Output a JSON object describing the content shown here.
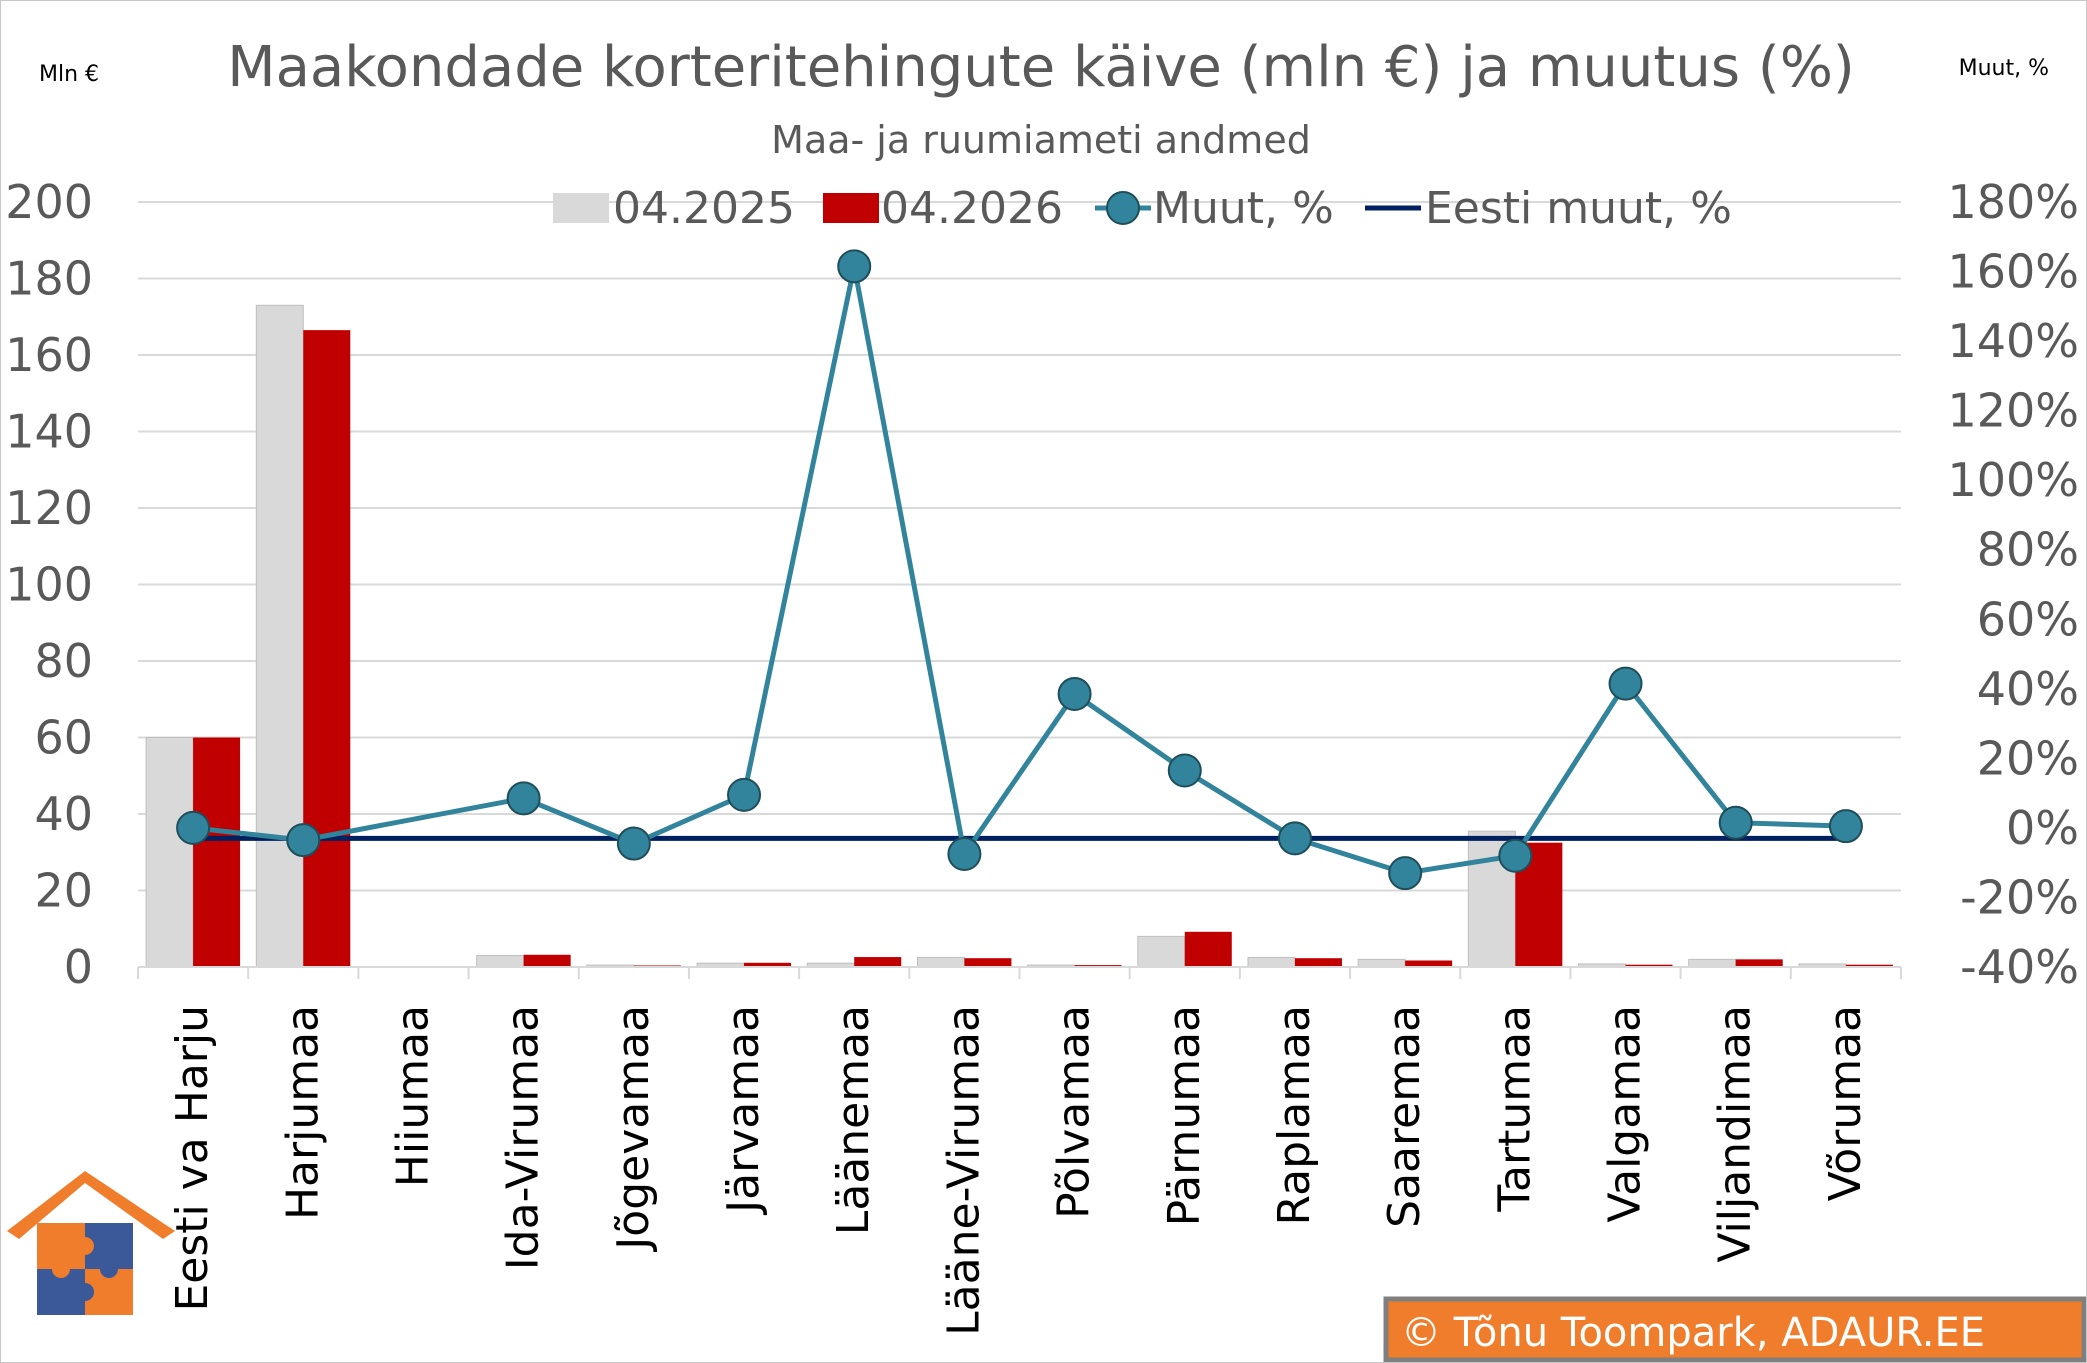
{
  "chart_data": {
    "type": "bar",
    "title": "Maakondade korteritehingute käive (mln €) ja muutus (%)",
    "subtitle": "Maa- ja ruumiameti andmed",
    "left_axis_label": "Mln €",
    "right_axis_label": "Muut, %",
    "categories": [
      "Eesti va Harju",
      "Harjumaa",
      "Hiiumaa",
      "Ida-Virumaa",
      "Jõgevamaa",
      "Järvamaa",
      "Läänemaa",
      "Lääne-Virumaa",
      "Põlvamaa",
      "Pärnumaa",
      "Raplamaa",
      "Saaremaa",
      "Tartumaa",
      "Valgamaa",
      "Viljandimaa",
      "Võrumaa"
    ],
    "series": [
      {
        "name": "04.2025",
        "kind": "bar",
        "axis": "left",
        "color": "#d9d9d9",
        "values": [
          60,
          173,
          0,
          3,
          0.5,
          1,
          1,
          2.5,
          0.5,
          8,
          2.5,
          2,
          35.5,
          0.8,
          2,
          0.8
        ]
      },
      {
        "name": "04.2026",
        "kind": "bar",
        "axis": "left",
        "color": "#c00000",
        "values": [
          60,
          166.5,
          0,
          3.2,
          0.4,
          1.1,
          2.6,
          2.3,
          0.5,
          9.2,
          2.3,
          1.7,
          32.5,
          0.6,
          2,
          0.6
        ]
      },
      {
        "name": "Muut, %",
        "kind": "line-marker",
        "axis": "right",
        "color": "#31849b",
        "values": [
          0,
          -3.5,
          null,
          8.5,
          -4.5,
          9.5,
          161.5,
          -7.5,
          38.5,
          16.5,
          -3,
          -13,
          -8,
          41.5,
          1.5,
          0.5
        ]
      },
      {
        "name": "Eesti muut, %",
        "kind": "line",
        "axis": "right",
        "color": "#002060",
        "values": [
          -3,
          -3,
          -3,
          -3,
          -3,
          -3,
          -3,
          -3,
          -3,
          -3,
          -3,
          -3,
          -3,
          -3,
          -3,
          -3
        ]
      }
    ],
    "left_axis": {
      "min": 0,
      "max": 200,
      "step": 20,
      "ticks": [
        "0",
        "20",
        "40",
        "60",
        "80",
        "100",
        "120",
        "140",
        "160",
        "180",
        "200"
      ]
    },
    "right_axis": {
      "min": -40,
      "max": 180,
      "step": 20,
      "ticks": [
        "-40%",
        "-20%",
        "0%",
        "20%",
        "40%",
        "60%",
        "80%",
        "100%",
        "120%",
        "140%",
        "160%",
        "180%"
      ]
    },
    "grid": true,
    "legend_position": "top"
  },
  "credit": "© Tõnu Toompark, ADAUR.EE",
  "colors": {
    "logo_roof": "#f07d2b",
    "puzzle_orange": "#f07d2b",
    "puzzle_blue": "#3b5898",
    "credit_bg": "#f07d2b",
    "credit_border": "#7f7f7f",
    "axis_text": "#595959",
    "grid": "#d9d9d9"
  }
}
